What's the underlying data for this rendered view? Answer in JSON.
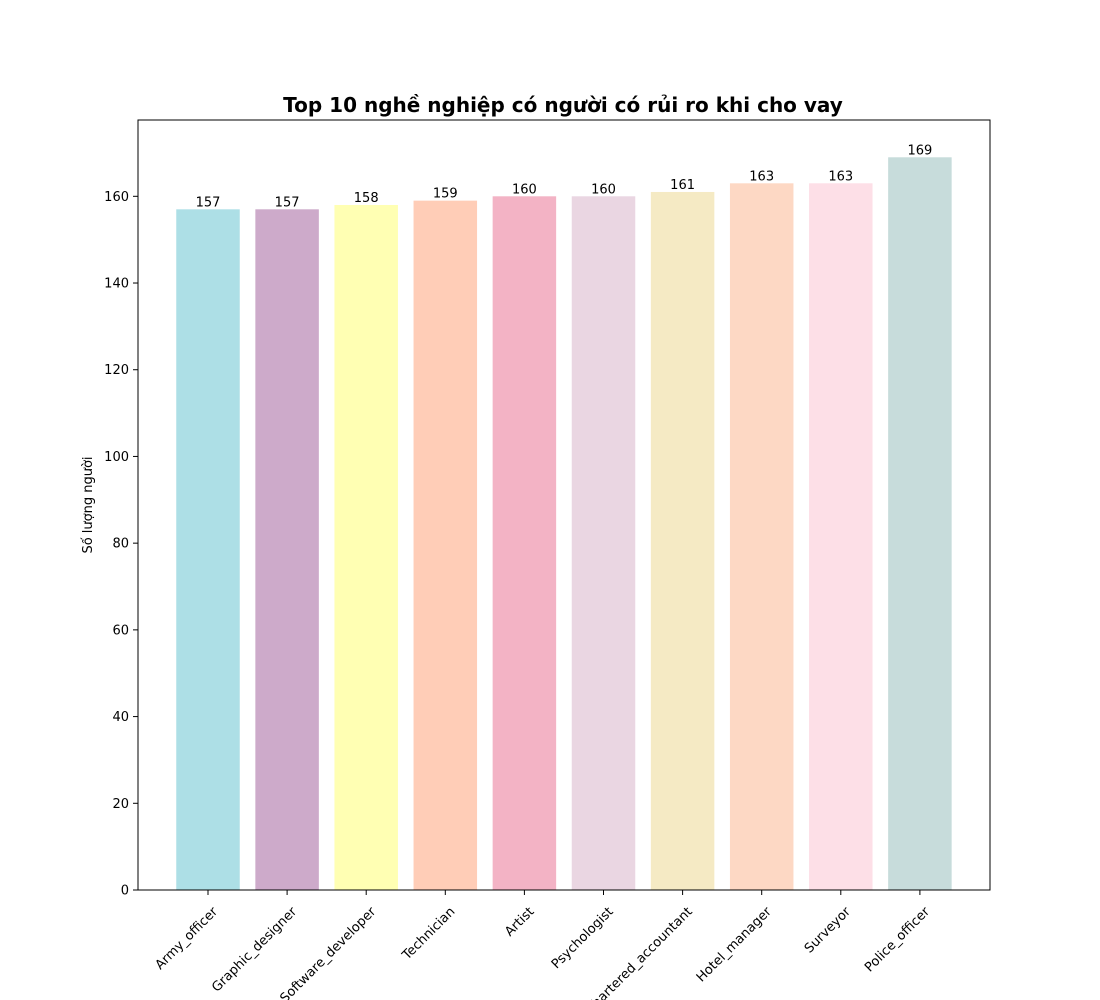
{
  "chart_data": {
    "type": "bar",
    "title": "Top 10 nghề nghiệp có người có rủi ro khi cho vay",
    "xlabel": "",
    "ylabel": "Số lượng người",
    "categories": [
      "Army_officer",
      "Graphic_designer",
      "Software_developer",
      "Technician",
      "Artist",
      "Psychologist",
      "Chartered_accountant",
      "Hotel_manager",
      "Surveyor",
      "Police_officer"
    ],
    "values": [
      157,
      157,
      158,
      159,
      160,
      160,
      161,
      163,
      163,
      169
    ],
    "colors": [
      "#ADDFE6",
      "#CDAACA",
      "#FFFFB3",
      "#FFCDB7",
      "#F3B3C5",
      "#EAD6E2",
      "#F5EAC4",
      "#FDD8C4",
      "#FDDFE7",
      "#C7DCDB"
    ],
    "ylim": [
      0,
      177.6
    ],
    "yticks": [
      0,
      20,
      40,
      60,
      80,
      100,
      120,
      140,
      160
    ],
    "grid": false,
    "legend": "none"
  }
}
